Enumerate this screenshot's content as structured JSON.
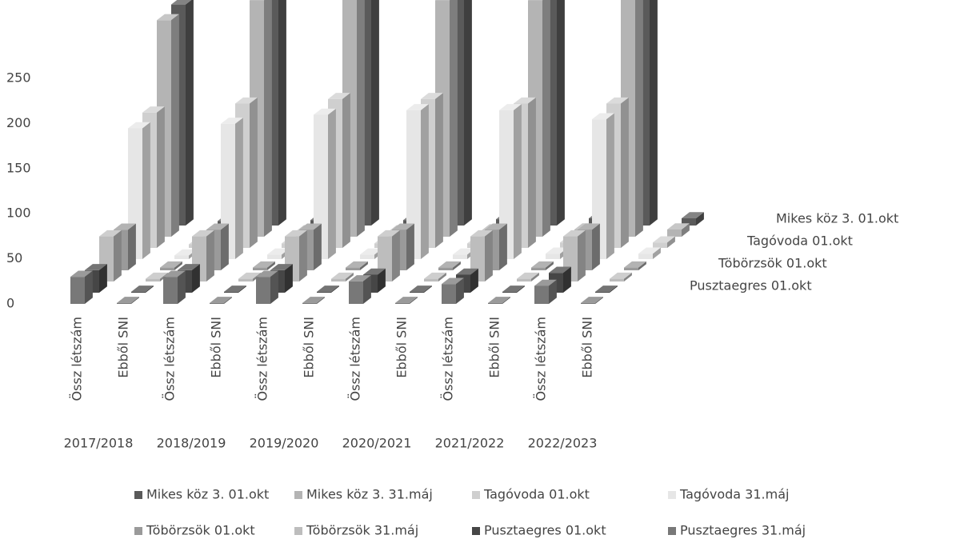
{
  "chart_data": {
    "type": "bar3d",
    "categories": [
      "Össz létszám",
      "Ebből SNI",
      "Össz létszám",
      "Ebből SNI",
      "Össz létszám",
      "Ebből SNI",
      "Össz létszám",
      "Ebből SNI",
      "Össz létszám",
      "Ebből SNI",
      "Össz létszám",
      "Ebből SNI"
    ],
    "groups": [
      "2017/2018",
      "2018/2019",
      "2019/2020",
      "2020/2021",
      "2021/2022",
      "2022/2023"
    ],
    "series": [
      {
        "name": "Mikes köz 3.  01.okt",
        "color": "#5a5a5a",
        "values": [
          245,
          5,
          265,
          6,
          268,
          6,
          265,
          7,
          265,
          8,
          268,
          8
        ]
      },
      {
        "name": "Mikes köz 3.  31.máj",
        "color": "#b4b4b4",
        "values": [
          240,
          5,
          262,
          6,
          265,
          6,
          262,
          7,
          262,
          8,
          265,
          8
        ]
      },
      {
        "name": "Tagóvoda 01.okt",
        "color": "#cfcfcf",
        "values": [
          150,
          4,
          160,
          5,
          165,
          5,
          165,
          5,
          160,
          6,
          160,
          6
        ]
      },
      {
        "name": "Tagóvoda 31.máj",
        "color": "#e6e6e6",
        "values": [
          145,
          4,
          150,
          5,
          160,
          5,
          165,
          5,
          165,
          6,
          155,
          6
        ]
      },
      {
        "name": "Töbörzsök 01.okt",
        "color": "#9a9a9a",
        "values": [
          45,
          3,
          45,
          3,
          45,
          3,
          45,
          3,
          45,
          3,
          45,
          3
        ]
      },
      {
        "name": "Töbörzsök 31.máj",
        "color": "#bdbdbd",
        "values": [
          50,
          3,
          50,
          3,
          50,
          3,
          50,
          3,
          50,
          3,
          50,
          3
        ]
      },
      {
        "name": "Pusztaegres 01.okt",
        "color": "#464646",
        "values": [
          25,
          1,
          25,
          1,
          25,
          1,
          20,
          1,
          20,
          1,
          22,
          1
        ]
      },
      {
        "name": "Pusztaegres 31.máj",
        "color": "#787878",
        "values": [
          30,
          1,
          30,
          1,
          30,
          1,
          25,
          1,
          22,
          1,
          20,
          1
        ]
      }
    ],
    "ylim": [
      0,
      300
    ],
    "yticks": [
      0,
      50,
      100,
      150,
      200,
      250
    ]
  }
}
